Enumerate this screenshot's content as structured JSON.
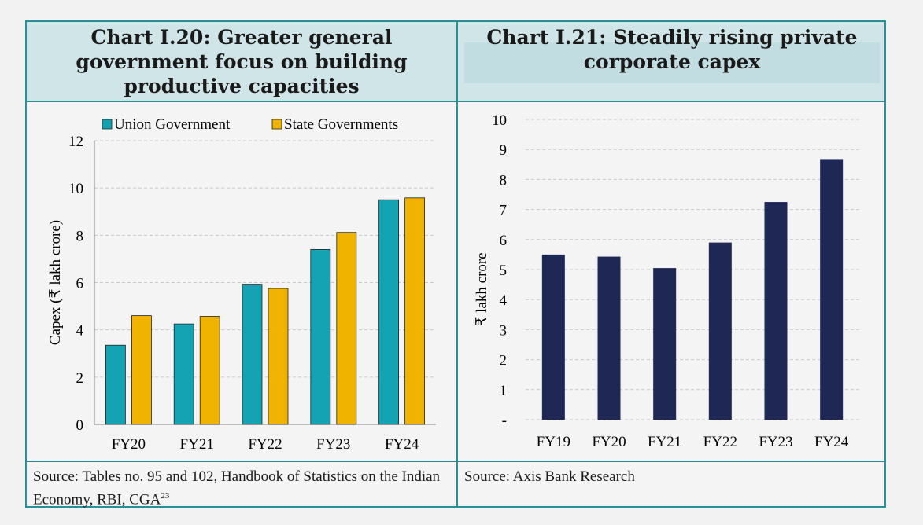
{
  "panels": {
    "left": {
      "title": "Chart I.20: Greater general government focus on building productive capacities",
      "source": "Source: Tables no. 95 and 102, Handbook of Statistics on the Indian Economy, RBI, CGA",
      "source_sup": "23"
    },
    "right": {
      "title": "Chart I.21: Steadily rising private corporate capex",
      "source": "Source: Axis Bank Research"
    }
  },
  "colors": {
    "union": "#14a3b3",
    "state": "#f0b400",
    "capex": "#1f2754",
    "border": "#2a8f94",
    "header_bg": "#cfe5e8",
    "grid": "#c8c8c8"
  },
  "chart_data": [
    {
      "type": "bar",
      "title": "Chart I.20: Greater general government focus on building productive capacities",
      "categories": [
        "FY20",
        "FY21",
        "FY22",
        "FY23",
        "FY24"
      ],
      "series": [
        {
          "name": "Union Government",
          "values": [
            3.35,
            4.25,
            5.93,
            7.4,
            9.5
          ]
        },
        {
          "name": "State Governments",
          "values": [
            4.6,
            4.57,
            5.75,
            8.12,
            9.58
          ]
        }
      ],
      "xlabel": "",
      "ylabel": "Capex (₹ lakh crore)",
      "ylim": [
        0,
        12
      ],
      "yticks": [
        "0",
        "2",
        "4",
        "6",
        "8",
        "10",
        "12"
      ],
      "grid": true,
      "legend": "top"
    },
    {
      "type": "bar",
      "title": "Chart I.21: Steadily rising private corporate capex",
      "categories": [
        "FY19",
        "FY20",
        "FY21",
        "FY22",
        "FY23",
        "FY24"
      ],
      "values": [
        5.5,
        5.43,
        5.05,
        5.9,
        7.25,
        8.68
      ],
      "xlabel": "",
      "ylabel": "₹ lakh crore",
      "ylim": [
        0,
        10
      ],
      "yticks": [
        "-",
        "1",
        "2",
        "3",
        "4",
        "5",
        "6",
        "7",
        "8",
        "9",
        "10"
      ],
      "grid": true,
      "legend": "none"
    }
  ]
}
